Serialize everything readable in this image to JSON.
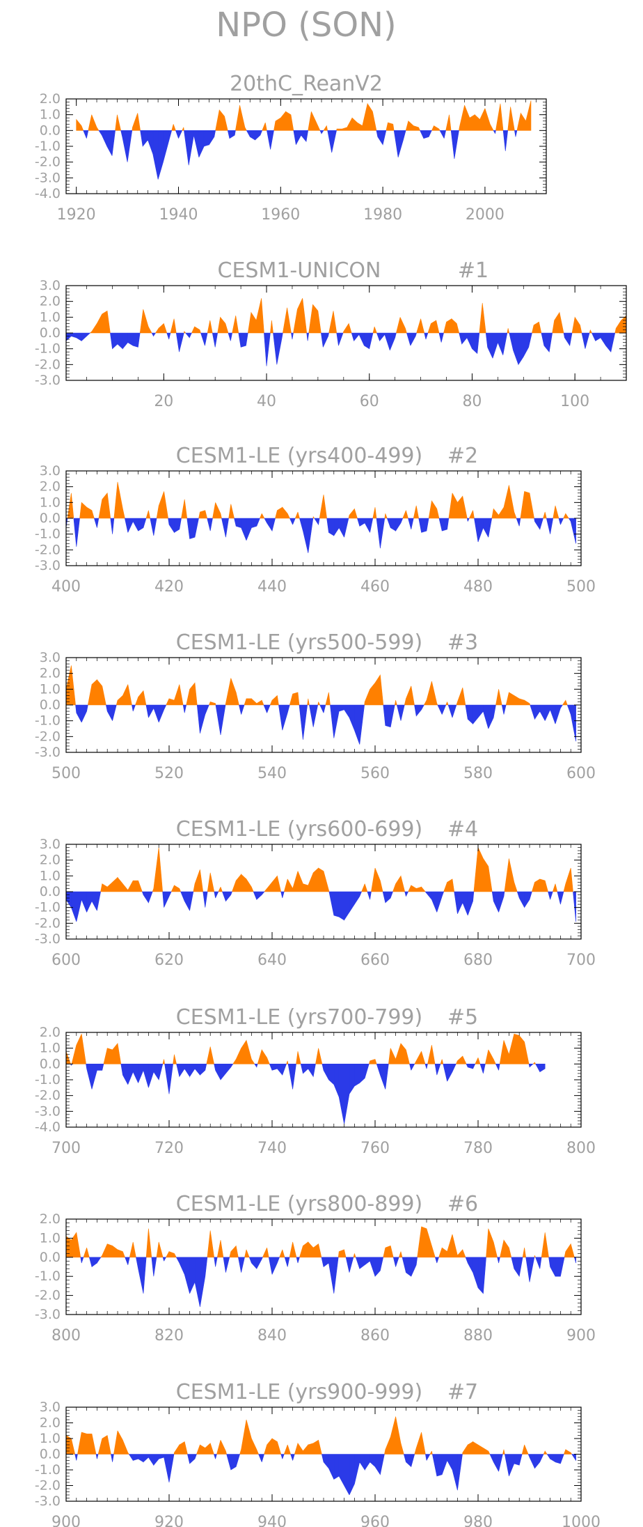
{
  "figure_title": "NPO (SON)",
  "colors": {
    "positive": "#ff8000",
    "negative": "#2b3ae8",
    "text": "#a0a0a0",
    "frame": "#000000"
  },
  "chart_data": [
    {
      "type": "area",
      "title": "20thC_ReanV2",
      "label": "",
      "xlim": [
        1918,
        2012
      ],
      "ylim": [
        -4.0,
        2.0
      ],
      "xticks": [
        "1920",
        "1940",
        "1960",
        "1980",
        "2000"
      ],
      "xtick_values": [
        1920,
        1940,
        1960,
        1980,
        2000
      ],
      "yticks": [
        "2.0",
        "1.0",
        "0.0",
        "-1.0",
        "-2.0",
        "-3.0",
        "-4.0"
      ],
      "x_start": 1920,
      "x_step": 1,
      "values": [
        0.7,
        0.3,
        -0.5,
        1.0,
        0.2,
        -0.3,
        -1.0,
        -1.6,
        1.0,
        -0.4,
        -2.0,
        0.2,
        1.1,
        -1.0,
        -0.6,
        -1.5,
        -3.1,
        -2.0,
        -0.8,
        0.4,
        -0.5,
        0.2,
        -2.2,
        -0.3,
        -1.7,
        -1.0,
        -0.9,
        -0.4,
        1.3,
        0.9,
        -0.5,
        -0.3,
        1.6,
        0.2,
        -0.4,
        -0.6,
        -0.3,
        0.5,
        -1.2,
        0.6,
        0.8,
        1.2,
        1.0,
        -0.9,
        -0.3,
        -0.7,
        1.2,
        0.5,
        -0.2,
        0.3,
        -1.4,
        0.1,
        0.1,
        0.2,
        0.8,
        0.5,
        0.3,
        1.7,
        1.2,
        -0.4,
        -0.9,
        0.5,
        0.4,
        -1.7,
        -0.6,
        0.6,
        0.3,
        0.2,
        -0.5,
        -0.4,
        0.3,
        0.1,
        -0.5,
        1.0,
        -1.8,
        0.2,
        1.6,
        0.8,
        1.0,
        0.7,
        1.4,
        0.4,
        -0.2,
        1.7,
        -1.3,
        1.5,
        -0.4,
        1.1,
        0.6,
        1.9
      ]
    },
    {
      "type": "area",
      "title": "CESM1-UNICON",
      "label": "#1",
      "xlim": [
        1,
        110
      ],
      "ylim": [
        -3.0,
        3.0
      ],
      "xticks": [
        "20",
        "40",
        "60",
        "80",
        "100"
      ],
      "xtick_values": [
        20,
        40,
        60,
        80,
        100
      ],
      "yticks": [
        "3.0",
        "2.0",
        "1.0",
        "0.0",
        "-1.0",
        "-2.0",
        "-3.0"
      ],
      "x_start": 1,
      "x_step": 1,
      "values": [
        -0.5,
        -0.2,
        -0.3,
        -0.5,
        -0.2,
        0.1,
        0.6,
        1.2,
        1.4,
        -1.0,
        -0.7,
        -1.0,
        -0.6,
        -0.8,
        -0.9,
        1.5,
        0.4,
        -0.2,
        0.3,
        0.6,
        -0.4,
        0.9,
        -1.2,
        0.1,
        -0.3,
        0.4,
        0.2,
        -0.8,
        0.8,
        -0.9,
        1.0,
        0.6,
        -0.5,
        1.1,
        -0.9,
        -0.8,
        1.3,
        0.8,
        2.2,
        -2.1,
        0.8,
        -2.0,
        -0.3,
        1.6,
        -0.4,
        1.5,
        2.2,
        -0.5,
        1.8,
        1.4,
        -0.9,
        -0.2,
        1.4,
        -0.8,
        0.1,
        0.6,
        -0.5,
        -0.1,
        -0.8,
        -1.0,
        0.4,
        -0.5,
        -0.1,
        -1.1,
        -0.3,
        1.0,
        0.3,
        -0.8,
        -0.2,
        0.9,
        -0.4,
        0.6,
        0.8,
        -0.6,
        0.7,
        0.9,
        0.6,
        -0.7,
        -0.3,
        -1.0,
        -1.3,
        1.9,
        -0.9,
        -1.6,
        -0.6,
        -1.4,
        0.3,
        -1.1,
        -2.0,
        -1.5,
        -0.9,
        0.5,
        0.7,
        -0.8,
        -1.2,
        0.8,
        1.3,
        -0.3,
        -0.8,
        1.0,
        0.5,
        -1.0,
        0.2,
        -0.5,
        -0.3,
        -0.8,
        -1.2,
        0.3,
        0.8,
        1.1
      ]
    },
    {
      "type": "area",
      "title": "CESM1-LE (yrs400-499)",
      "label": "#2",
      "xlim": [
        400,
        500
      ],
      "ylim": [
        -3.0,
        3.0
      ],
      "xticks": [
        "400",
        "420",
        "440",
        "460",
        "480",
        "500"
      ],
      "xtick_values": [
        400,
        420,
        440,
        460,
        480,
        500
      ],
      "yticks": [
        "3.0",
        "2.0",
        "1.0",
        "0.0",
        "-1.0",
        "-2.0",
        "-3.0"
      ],
      "x_start": 400,
      "x_step": 1,
      "values": [
        -0.6,
        1.6,
        -1.8,
        1.0,
        0.7,
        0.5,
        -0.6,
        1.2,
        1.6,
        -1.0,
        2.3,
        0.6,
        -0.9,
        -0.2,
        -0.8,
        -0.6,
        0.5,
        -1.1,
        0.8,
        1.7,
        -0.4,
        -0.9,
        -0.7,
        1.2,
        -1.3,
        -1.2,
        0.4,
        0.5,
        -0.8,
        1.0,
        0.3,
        -1.2,
        0.9,
        -0.5,
        -0.6,
        -1.4,
        -0.6,
        -0.5,
        0.3,
        -0.3,
        -0.8,
        0.5,
        0.7,
        0.3,
        -0.4,
        0.4,
        -0.8,
        -2.2,
        0.1,
        -0.4,
        1.5,
        -0.9,
        -1.1,
        -0.6,
        -1.2,
        0.2,
        0.6,
        -0.5,
        -0.3,
        -0.9,
        0.7,
        -1.9,
        0.3,
        -0.6,
        -0.8,
        -0.3,
        0.5,
        -0.7,
        0.8,
        -0.9,
        -0.8,
        1.1,
        0.6,
        -0.8,
        -0.7,
        1.6,
        1.0,
        1.4,
        -0.2,
        0.5,
        -1.5,
        -0.6,
        -1.2,
        0.6,
        0.2,
        0.7,
        2.1,
        0.4,
        -0.5,
        1.7,
        1.6,
        -0.2,
        -0.7,
        0.4,
        -1.0,
        0.8,
        -0.4,
        0.3,
        -0.2,
        -1.6
      ]
    },
    {
      "type": "area",
      "title": "CESM1-LE (yrs500-599)",
      "label": "#3",
      "xlim": [
        500,
        600
      ],
      "ylim": [
        -3.0,
        3.0
      ],
      "xticks": [
        "500",
        "520",
        "540",
        "560",
        "580",
        "600"
      ],
      "xtick_values": [
        500,
        520,
        540,
        560,
        580,
        600
      ],
      "yticks": [
        "3.0",
        "2.0",
        "1.0",
        "0.0",
        "-1.0",
        "-2.0",
        "-3.0"
      ],
      "x_start": 500,
      "x_step": 1,
      "values": [
        1.0,
        2.5,
        -0.5,
        -1.1,
        -0.4,
        1.3,
        1.6,
        1.2,
        -0.4,
        -1.0,
        0.3,
        0.6,
        1.3,
        -0.4,
        0.5,
        0.9,
        -0.8,
        -0.2,
        -1.1,
        -0.3,
        0.4,
        0.3,
        1.3,
        -0.5,
        1.0,
        1.4,
        -1.8,
        -0.6,
        0.2,
        0.1,
        -1.9,
        0.1,
        1.7,
        0.8,
        -0.6,
        0.4,
        0.4,
        0.1,
        0.3,
        -0.5,
        0.3,
        0.6,
        -1.6,
        -0.5,
        0.7,
        0.8,
        -2.2,
        0.4,
        -1.4,
        0.2,
        -0.5,
        0.8,
        -2.1,
        -0.4,
        -0.3,
        -0.8,
        -1.6,
        -2.5,
        0.2,
        1.0,
        1.4,
        1.9,
        -1.3,
        -1.4,
        0.3,
        -1.0,
        0.4,
        1.2,
        -0.7,
        -0.3,
        0.3,
        1.5,
        0.1,
        -0.6,
        0.2,
        -0.8,
        0.2,
        1.1,
        -0.9,
        -1.2,
        -0.8,
        -0.4,
        -1.5,
        -0.8,
        1.0,
        -0.6,
        0.8,
        0.6,
        0.4,
        0.3,
        0.1,
        -0.9,
        -0.4,
        -1.0,
        -0.3,
        -1.2,
        -0.2,
        0.3,
        -0.6,
        -2.3
      ]
    },
    {
      "type": "area",
      "title": "CESM1-LE (yrs600-699)",
      "label": "#4",
      "xlim": [
        600,
        700
      ],
      "ylim": [
        -3.0,
        3.0
      ],
      "xticks": [
        "600",
        "620",
        "640",
        "660",
        "680",
        "700"
      ],
      "xtick_values": [
        600,
        620,
        640,
        660,
        680,
        700
      ],
      "yticks": [
        "3.0",
        "2.0",
        "1.0",
        "0.0",
        "-1.0",
        "-2.0",
        "-3.0"
      ],
      "x_start": 600,
      "x_step": 1,
      "values": [
        -0.5,
        -1.0,
        -1.9,
        -0.5,
        -1.3,
        -0.6,
        -1.2,
        0.5,
        0.3,
        0.6,
        0.9,
        0.5,
        0.1,
        0.7,
        0.7,
        -0.2,
        -0.7,
        0.2,
        2.8,
        -1.0,
        -0.3,
        0.4,
        0.2,
        -0.6,
        -1.2,
        0.5,
        1.4,
        -1.0,
        1.2,
        -0.4,
        0.3,
        -0.6,
        -0.2,
        0.7,
        1.1,
        0.8,
        0.3,
        -0.5,
        -0.2,
        0.2,
        0.6,
        1.0,
        -0.4,
        0.8,
        0.2,
        1.3,
        0.5,
        0.4,
        1.2,
        1.5,
        1.3,
        0.1,
        -1.5,
        -1.6,
        -1.8,
        -1.3,
        -0.8,
        -0.3,
        0.5,
        -0.5,
        1.5,
        0.7,
        -0.7,
        -0.4,
        0.5,
        1.0,
        -0.3,
        0.4,
        0.2,
        0.3,
        -0.1,
        -0.5,
        -1.3,
        -0.3,
        0.6,
        0.8,
        -1.4,
        -0.7,
        -1.5,
        -0.6,
        2.8,
        2.1,
        1.6,
        -0.6,
        -1.3,
        -0.3,
        2.1,
        0.6,
        -0.4,
        -1.0,
        -0.5,
        0.6,
        0.8,
        0.7,
        -0.5,
        0.5,
        -0.8,
        0.5,
        1.5,
        -1.9
      ]
    },
    {
      "type": "area",
      "title": "CESM1-LE (yrs700-799)",
      "label": "#5",
      "xlim": [
        700,
        800
      ],
      "ylim": [
        -4.0,
        2.0
      ],
      "xticks": [
        "700",
        "720",
        "740",
        "760",
        "780",
        "800"
      ],
      "xtick_values": [
        700,
        720,
        740,
        760,
        780,
        800
      ],
      "yticks": [
        "2.0",
        "1.0",
        "0.0",
        "-1.0",
        "-2.0",
        "-3.0",
        "-4.0"
      ],
      "x_start": 700,
      "x_step": 1,
      "values": [
        0.8,
        -0.1,
        1.2,
        1.9,
        -0.3,
        -1.6,
        -0.4,
        -0.4,
        1.0,
        0.9,
        1.3,
        -0.7,
        -1.3,
        -0.5,
        -1.2,
        -0.4,
        -1.5,
        -0.5,
        -1.0,
        0.3,
        -1.9,
        0.6,
        -0.8,
        -0.3,
        -0.8,
        -0.3,
        -0.7,
        -0.4,
        1.1,
        -0.4,
        -1.0,
        -0.6,
        -0.2,
        0.3,
        1.0,
        1.5,
        0.3,
        -0.2,
        0.9,
        0.4,
        -0.4,
        -0.3,
        -0.7,
        0.2,
        -1.6,
        0.8,
        -0.6,
        -0.3,
        -0.8,
        1.0,
        -0.4,
        -1.0,
        -1.3,
        -2.1,
        -3.8,
        -1.9,
        -1.4,
        -1.2,
        -0.9,
        0.2,
        0.3,
        -0.7,
        -1.6,
        1.0,
        0.3,
        1.3,
        0.9,
        -0.4,
        0.2,
        0.8,
        -0.3,
        1.2,
        -0.7,
        0.3,
        -1.1,
        -0.5,
        0.2,
        0.5,
        -0.2,
        -0.3,
        0.4,
        -0.6,
        0.9,
        0.3,
        -0.4,
        1.5,
        0.6,
        1.9,
        1.8,
        1.4,
        -0.2,
        0.1,
        -0.5,
        -0.3
      ]
    },
    {
      "type": "area",
      "title": "CESM1-LE (yrs800-899)",
      "label": "#6",
      "xlim": [
        800,
        900
      ],
      "ylim": [
        -3.0,
        2.0
      ],
      "xticks": [
        "800",
        "820",
        "840",
        "860",
        "880",
        "900"
      ],
      "xtick_values": [
        800,
        820,
        840,
        860,
        880,
        900
      ],
      "yticks": [
        "2.0",
        "1.0",
        "0.0",
        "-1.0",
        "-2.0",
        "-3.0"
      ],
      "x_start": 800,
      "x_step": 1,
      "values": [
        1.1,
        0.9,
        1.3,
        -0.3,
        0.5,
        -0.5,
        -0.3,
        0.1,
        0.7,
        0.6,
        0.4,
        0.3,
        -0.4,
        0.8,
        -0.6,
        -1.9,
        1.5,
        -1.0,
        0.8,
        -0.2,
        0.3,
        0.2,
        -0.3,
        -0.9,
        -1.9,
        -1.3,
        -2.6,
        -1.0,
        1.4,
        -0.5,
        0.9,
        -0.8,
        0.3,
        0.6,
        -0.8,
        0.4,
        -0.3,
        -0.6,
        -0.1,
        0.5,
        -0.9,
        -0.3,
        0.4,
        -0.5,
        0.8,
        -0.3,
        0.6,
        0.8,
        0.5,
        0.7,
        -0.5,
        -0.3,
        -1.9,
        0.3,
        0.4,
        -0.8,
        0.2,
        -0.6,
        -0.4,
        -0.2,
        -1.0,
        -0.7,
        0.5,
        0.6,
        -0.5,
        0.3,
        -0.8,
        -1.0,
        -0.4,
        1.6,
        1.5,
        0.6,
        -0.3,
        0.5,
        0.3,
        1.2,
        0.1,
        0.4,
        -0.3,
        -0.8,
        -1.6,
        -1.9,
        1.5,
        0.8,
        -0.3,
        0.9,
        0.5,
        -0.6,
        -1.0,
        0.5,
        -1.3,
        0.1,
        -0.6,
        1.3,
        -0.5,
        -1.0,
        -1.0,
        0.3,
        0.7,
        -0.3
      ]
    },
    {
      "type": "area",
      "title": "CESM1-LE (yrs900-999)",
      "label": "#7",
      "xlim": [
        900,
        1000
      ],
      "ylim": [
        -3.0,
        3.0
      ],
      "xticks": [
        "900",
        "920",
        "940",
        "960",
        "980",
        "1000"
      ],
      "xtick_values": [
        900,
        920,
        940,
        960,
        980,
        1000
      ],
      "yticks": [
        "3.0",
        "2.0",
        "1.0",
        "0.0",
        "-1.0",
        "-2.0",
        "-3.0"
      ],
      "x_start": 900,
      "x_step": 1,
      "values": [
        1.2,
        1.0,
        -0.4,
        1.4,
        1.3,
        1.3,
        -0.3,
        1.0,
        1.2,
        -0.5,
        1.5,
        0.9,
        0.1,
        -0.4,
        -0.3,
        -0.5,
        -0.2,
        -0.7,
        -0.3,
        -0.2,
        -1.8,
        0.1,
        0.6,
        0.8,
        -0.6,
        -0.3,
        0.6,
        0.4,
        0.7,
        -0.3,
        0.9,
        0.2,
        -1.0,
        -0.8,
        0.3,
        2.2,
        1.0,
        0.3,
        -0.5,
        0.6,
        1.0,
        0.8,
        -0.3,
        0.6,
        -0.4,
        0.7,
        0.2,
        0.6,
        0.7,
        0.9,
        -0.5,
        -0.9,
        -1.6,
        -1.4,
        -2.0,
        -2.6,
        -1.9,
        -0.5,
        -1.0,
        -0.5,
        -0.8,
        -1.3,
        0.3,
        1.1,
        2.4,
        0.7,
        -0.5,
        -0.8,
        0.4,
        1.4,
        -0.4,
        0.2,
        -1.4,
        -1.3,
        -0.4,
        -1.0,
        -2.3,
        0.1,
        0.6,
        0.8,
        0.6,
        0.4,
        0.2,
        -0.5,
        -1.1,
        0.3,
        -1.4,
        -0.6,
        -0.7,
        0.6,
        -0.2,
        -0.9,
        -0.5,
        0.2,
        -0.3,
        -0.5,
        -0.6,
        0.3,
        0.1,
        -0.4
      ]
    }
  ]
}
